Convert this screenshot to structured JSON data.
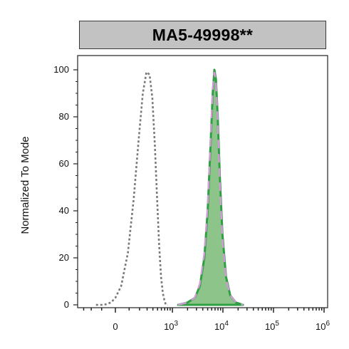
{
  "title": "MA5-49998**",
  "chart_data": {
    "type": "area",
    "title": "MA5-49998**",
    "xlabel": "",
    "ylabel": "Normalized To Mode",
    "x_scale": "biexponential",
    "ylim": [
      0,
      100
    ],
    "y_ticks": [
      {
        "value": 0,
        "label": "0"
      },
      {
        "value": 20,
        "label": "20"
      },
      {
        "value": 40,
        "label": "40"
      },
      {
        "value": 60,
        "label": "60"
      },
      {
        "value": 80,
        "label": "80"
      },
      {
        "value": 100,
        "label": "100"
      }
    ],
    "x_ticks": [
      {
        "value": 0,
        "label": "0"
      },
      {
        "value": 1000,
        "base": "10",
        "exp": "3"
      },
      {
        "value": 10000,
        "base": "10",
        "exp": "4"
      },
      {
        "value": 100000,
        "base": "10",
        "exp": "5"
      },
      {
        "value": 1000000,
        "base": "10",
        "exp": "6"
      }
    ],
    "series": [
      {
        "style": "dotted",
        "color": "#7a7a7a",
        "x": [
          -150,
          -80,
          -30,
          0,
          40,
          90,
          140,
          190,
          240,
          290,
          340,
          390,
          440,
          490,
          540,
          590,
          640,
          690,
          740,
          800
        ],
        "y": [
          0,
          0,
          1,
          3,
          8,
          22,
          45,
          70,
          90,
          99,
          98,
          88,
          68,
          45,
          25,
          12,
          5,
          2,
          0,
          0
        ]
      },
      {
        "style": "filled",
        "color": "#2ea043",
        "fill": "#8cc48a",
        "x": [
          1300,
          2000,
          2800,
          3500,
          4300,
          5000,
          5700,
          6300,
          6800,
          7300,
          7900,
          8700,
          9800,
          11500,
          14000,
          18000,
          25000
        ],
        "y": [
          0,
          1,
          3,
          8,
          20,
          40,
          68,
          90,
          100,
          96,
          80,
          55,
          30,
          12,
          4,
          1,
          0
        ]
      },
      {
        "style": "dashed",
        "color": "#d49ad8",
        "x": [
          1300,
          2000,
          2800,
          3500,
          4300,
          5000,
          5700,
          6300,
          6800,
          7300,
          7900,
          8700,
          9800,
          11500,
          14000,
          18000,
          25000
        ],
        "y": [
          0,
          1,
          3,
          9,
          22,
          42,
          70,
          92,
          99,
          95,
          78,
          52,
          28,
          11,
          4,
          1,
          0
        ]
      }
    ],
    "grid": false,
    "legend": "none"
  }
}
